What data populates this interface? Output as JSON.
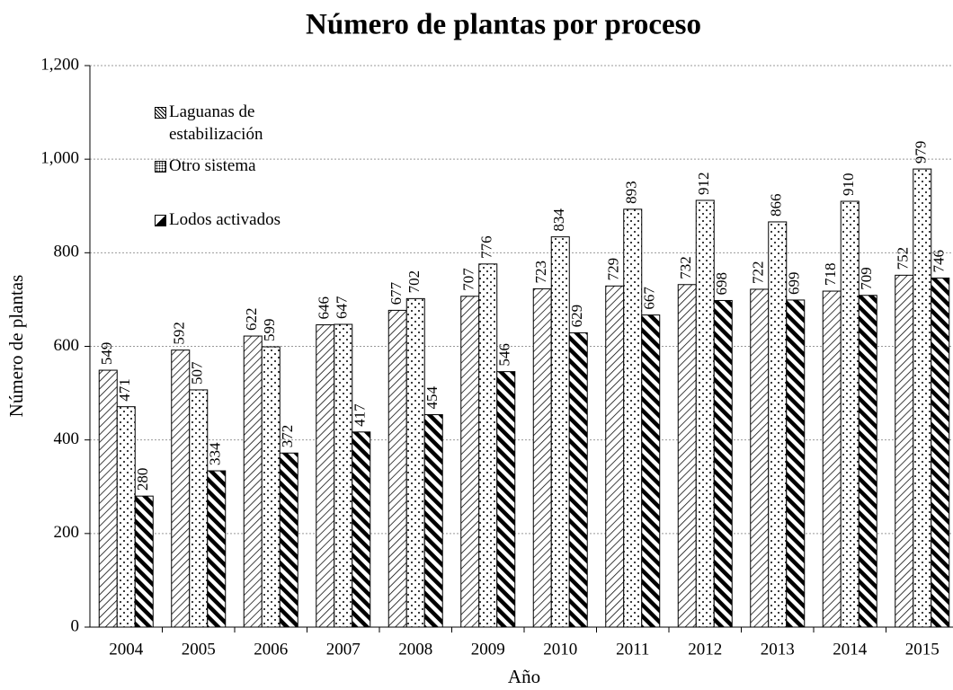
{
  "chart_data": {
    "type": "bar",
    "title": "Número de plantas por proceso",
    "x_label": "Año",
    "y_label": "Número de plantas",
    "categories": [
      "2004",
      "2005",
      "2006",
      "2007",
      "2008",
      "2009",
      "2010",
      "2011",
      "2012",
      "2013",
      "2014",
      "2015"
    ],
    "series": [
      {
        "name": "Laguanas de estabilización",
        "color": "#000000",
        "values": [
          549,
          592,
          622,
          646,
          677,
          707,
          723,
          729,
          732,
          722,
          718,
          752
        ]
      },
      {
        "name": "Otro sistema",
        "color": "#000000",
        "values": [
          471,
          507,
          599,
          647,
          702,
          776,
          834,
          893,
          912,
          866,
          910,
          979
        ]
      },
      {
        "name": "Lodos activados",
        "color": "#000000",
        "values": [
          280,
          334,
          372,
          417,
          454,
          546,
          629,
          667,
          698,
          699,
          709,
          746
        ]
      }
    ],
    "ylim": [
      0,
      1200
    ],
    "yticks": [
      0,
      200,
      400,
      600,
      800,
      {
        "value": 1000,
        "label": "1,000"
      },
      {
        "value": 1200,
        "label": "1,200"
      }
    ],
    "grid": true,
    "legend": "upper left"
  }
}
